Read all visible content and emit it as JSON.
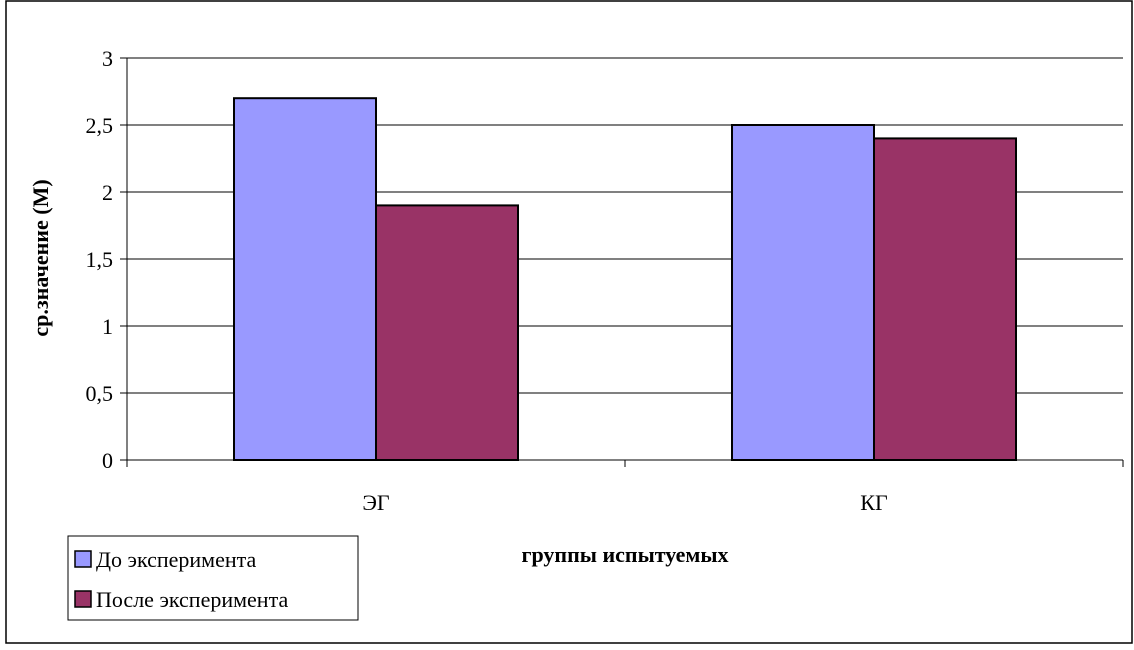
{
  "chart_data": {
    "type": "bar",
    "categories": [
      "ЭГ",
      "КГ"
    ],
    "series": [
      {
        "name": "До эксперимента",
        "values": [
          2.7,
          2.5
        ],
        "color": "#9999ff"
      },
      {
        "name": "После эксперимента",
        "values": [
          1.9,
          2.4
        ],
        "color": "#993366"
      }
    ],
    "xlabel": "группы испытуемых",
    "ylabel": "ср.значение (М)",
    "ylim": [
      0,
      3
    ],
    "yticks": [
      "0",
      "0,5",
      "1",
      "1,5",
      "2",
      "2,5",
      "3"
    ],
    "grid": true,
    "legend_position": "bottom-left"
  }
}
